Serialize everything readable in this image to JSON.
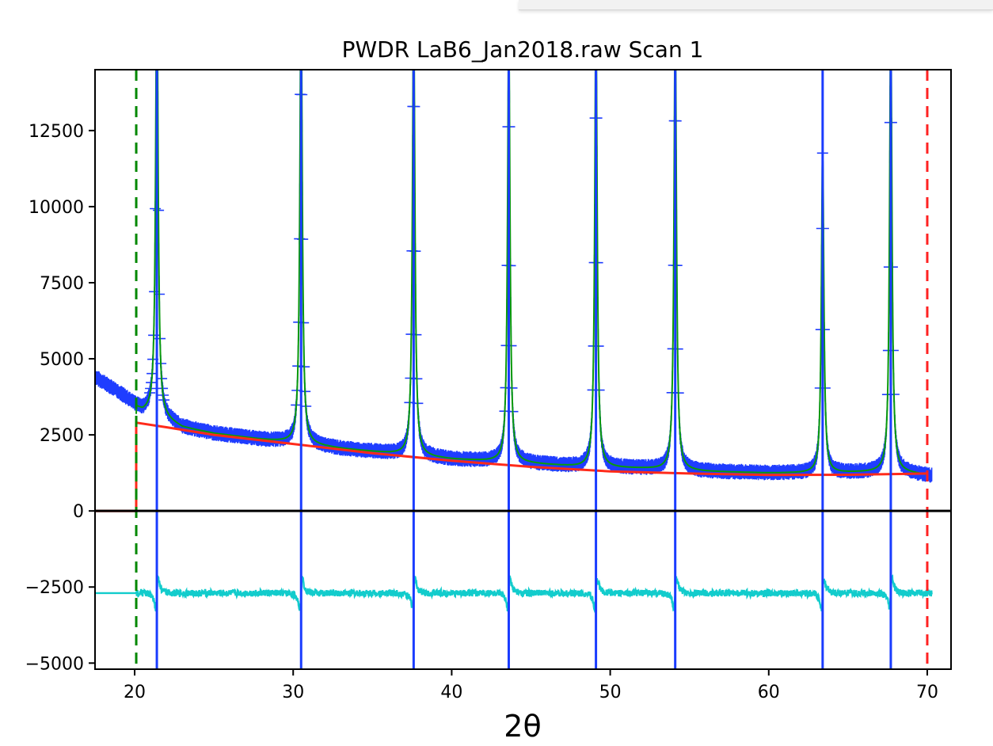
{
  "chart_data": {
    "type": "line",
    "title": "PWDR LaB6_Jan2018.raw Scan 1",
    "xlabel": "2θ",
    "ylabel": "",
    "xlim": [
      17.5,
      71.5
    ],
    "ylim": [
      -5200,
      14500
    ],
    "xticks": [
      20,
      30,
      40,
      50,
      60,
      70
    ],
    "yticks": [
      -5000,
      -2500,
      0,
      2500,
      5000,
      7500,
      10000,
      12500
    ],
    "ytick_labels": [
      "−5000",
      "−2500",
      "0",
      "2500",
      "5000",
      "7500",
      "10000",
      "12500"
    ],
    "grid": false,
    "legend": "none",
    "limits": {
      "lower": 20.1,
      "upper": 70.0
    },
    "reflections": [
      21.4,
      30.5,
      37.6,
      43.6,
      49.1,
      54.1,
      63.4,
      67.7
    ],
    "peak_heights": [
      15000,
      15000,
      15000,
      14400,
      15000,
      15000,
      10500,
      15000
    ],
    "background": {
      "x": [
        17.5,
        20.1,
        20.1,
        22,
        25,
        30,
        35,
        40,
        45,
        50,
        55,
        60,
        65,
        70
      ],
      "y": [
        0,
        0,
        2900,
        2750,
        2500,
        2200,
        1900,
        1650,
        1450,
        1300,
        1230,
        1180,
        1190,
        1230
      ]
    },
    "observed_envelope": {
      "x": [
        17.5,
        19,
        20.5,
        21,
        23,
        25,
        28,
        30,
        33,
        36,
        40,
        44,
        48,
        52,
        56,
        60,
        64,
        68,
        70.3
      ],
      "y": [
        4400,
        3900,
        3300,
        3300,
        2750,
        2550,
        2350,
        2250,
        2050,
        1900,
        1700,
        1600,
        1450,
        1400,
        1300,
        1250,
        1250,
        1300,
        1150
      ]
    },
    "difference_baseline": -2700,
    "series": [
      {
        "name": "",
        "role": "observed",
        "color": "#1f3dff"
      },
      {
        "name": "",
        "role": "calculated",
        "color": "#0a9a0a"
      },
      {
        "name": "",
        "role": "background",
        "color": "#ff2a1a"
      },
      {
        "name": "",
        "role": "difference",
        "color": "#12cccc"
      }
    ],
    "colors": {
      "lower_limit": "#008800",
      "upper_limit": "#ff2222",
      "reflection": "#1a3cff",
      "zero_line": "#000000"
    }
  }
}
